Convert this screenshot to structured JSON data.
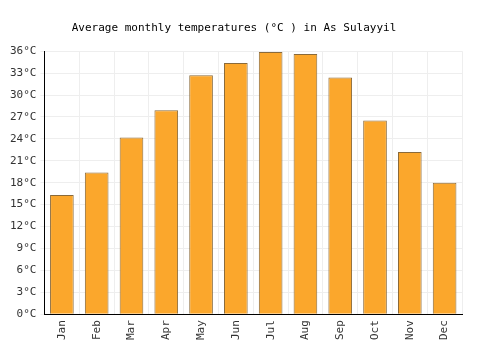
{
  "chart_data": {
    "type": "bar",
    "title": "Average monthly temperatures (°C ) in As Sulayyil",
    "categories": [
      "Jan",
      "Feb",
      "Mar",
      "Apr",
      "May",
      "Jun",
      "Jul",
      "Aug",
      "Sep",
      "Oct",
      "Nov",
      "Dec"
    ],
    "values": [
      16.3,
      19.4,
      24.2,
      27.9,
      32.7,
      34.4,
      35.9,
      35.6,
      32.4,
      26.5,
      22.2,
      18.0
    ],
    "color": "#fba72c",
    "ylim": [
      0,
      36
    ],
    "yticks": [
      {
        "value": 0,
        "label": "0°C"
      },
      {
        "value": 3,
        "label": "3°C"
      },
      {
        "value": 6,
        "label": "6°C"
      },
      {
        "value": 9,
        "label": "9°C"
      },
      {
        "value": 12,
        "label": "12°C"
      },
      {
        "value": 15,
        "label": "15°C"
      },
      {
        "value": 18,
        "label": "18°C"
      },
      {
        "value": 21,
        "label": "21°C"
      },
      {
        "value": 24,
        "label": "24°C"
      },
      {
        "value": 27,
        "label": "27°C"
      },
      {
        "value": 30,
        "label": "30°C"
      },
      {
        "value": 33,
        "label": "33°C"
      },
      {
        "value": 36,
        "label": "36°C"
      }
    ],
    "grid": true
  }
}
